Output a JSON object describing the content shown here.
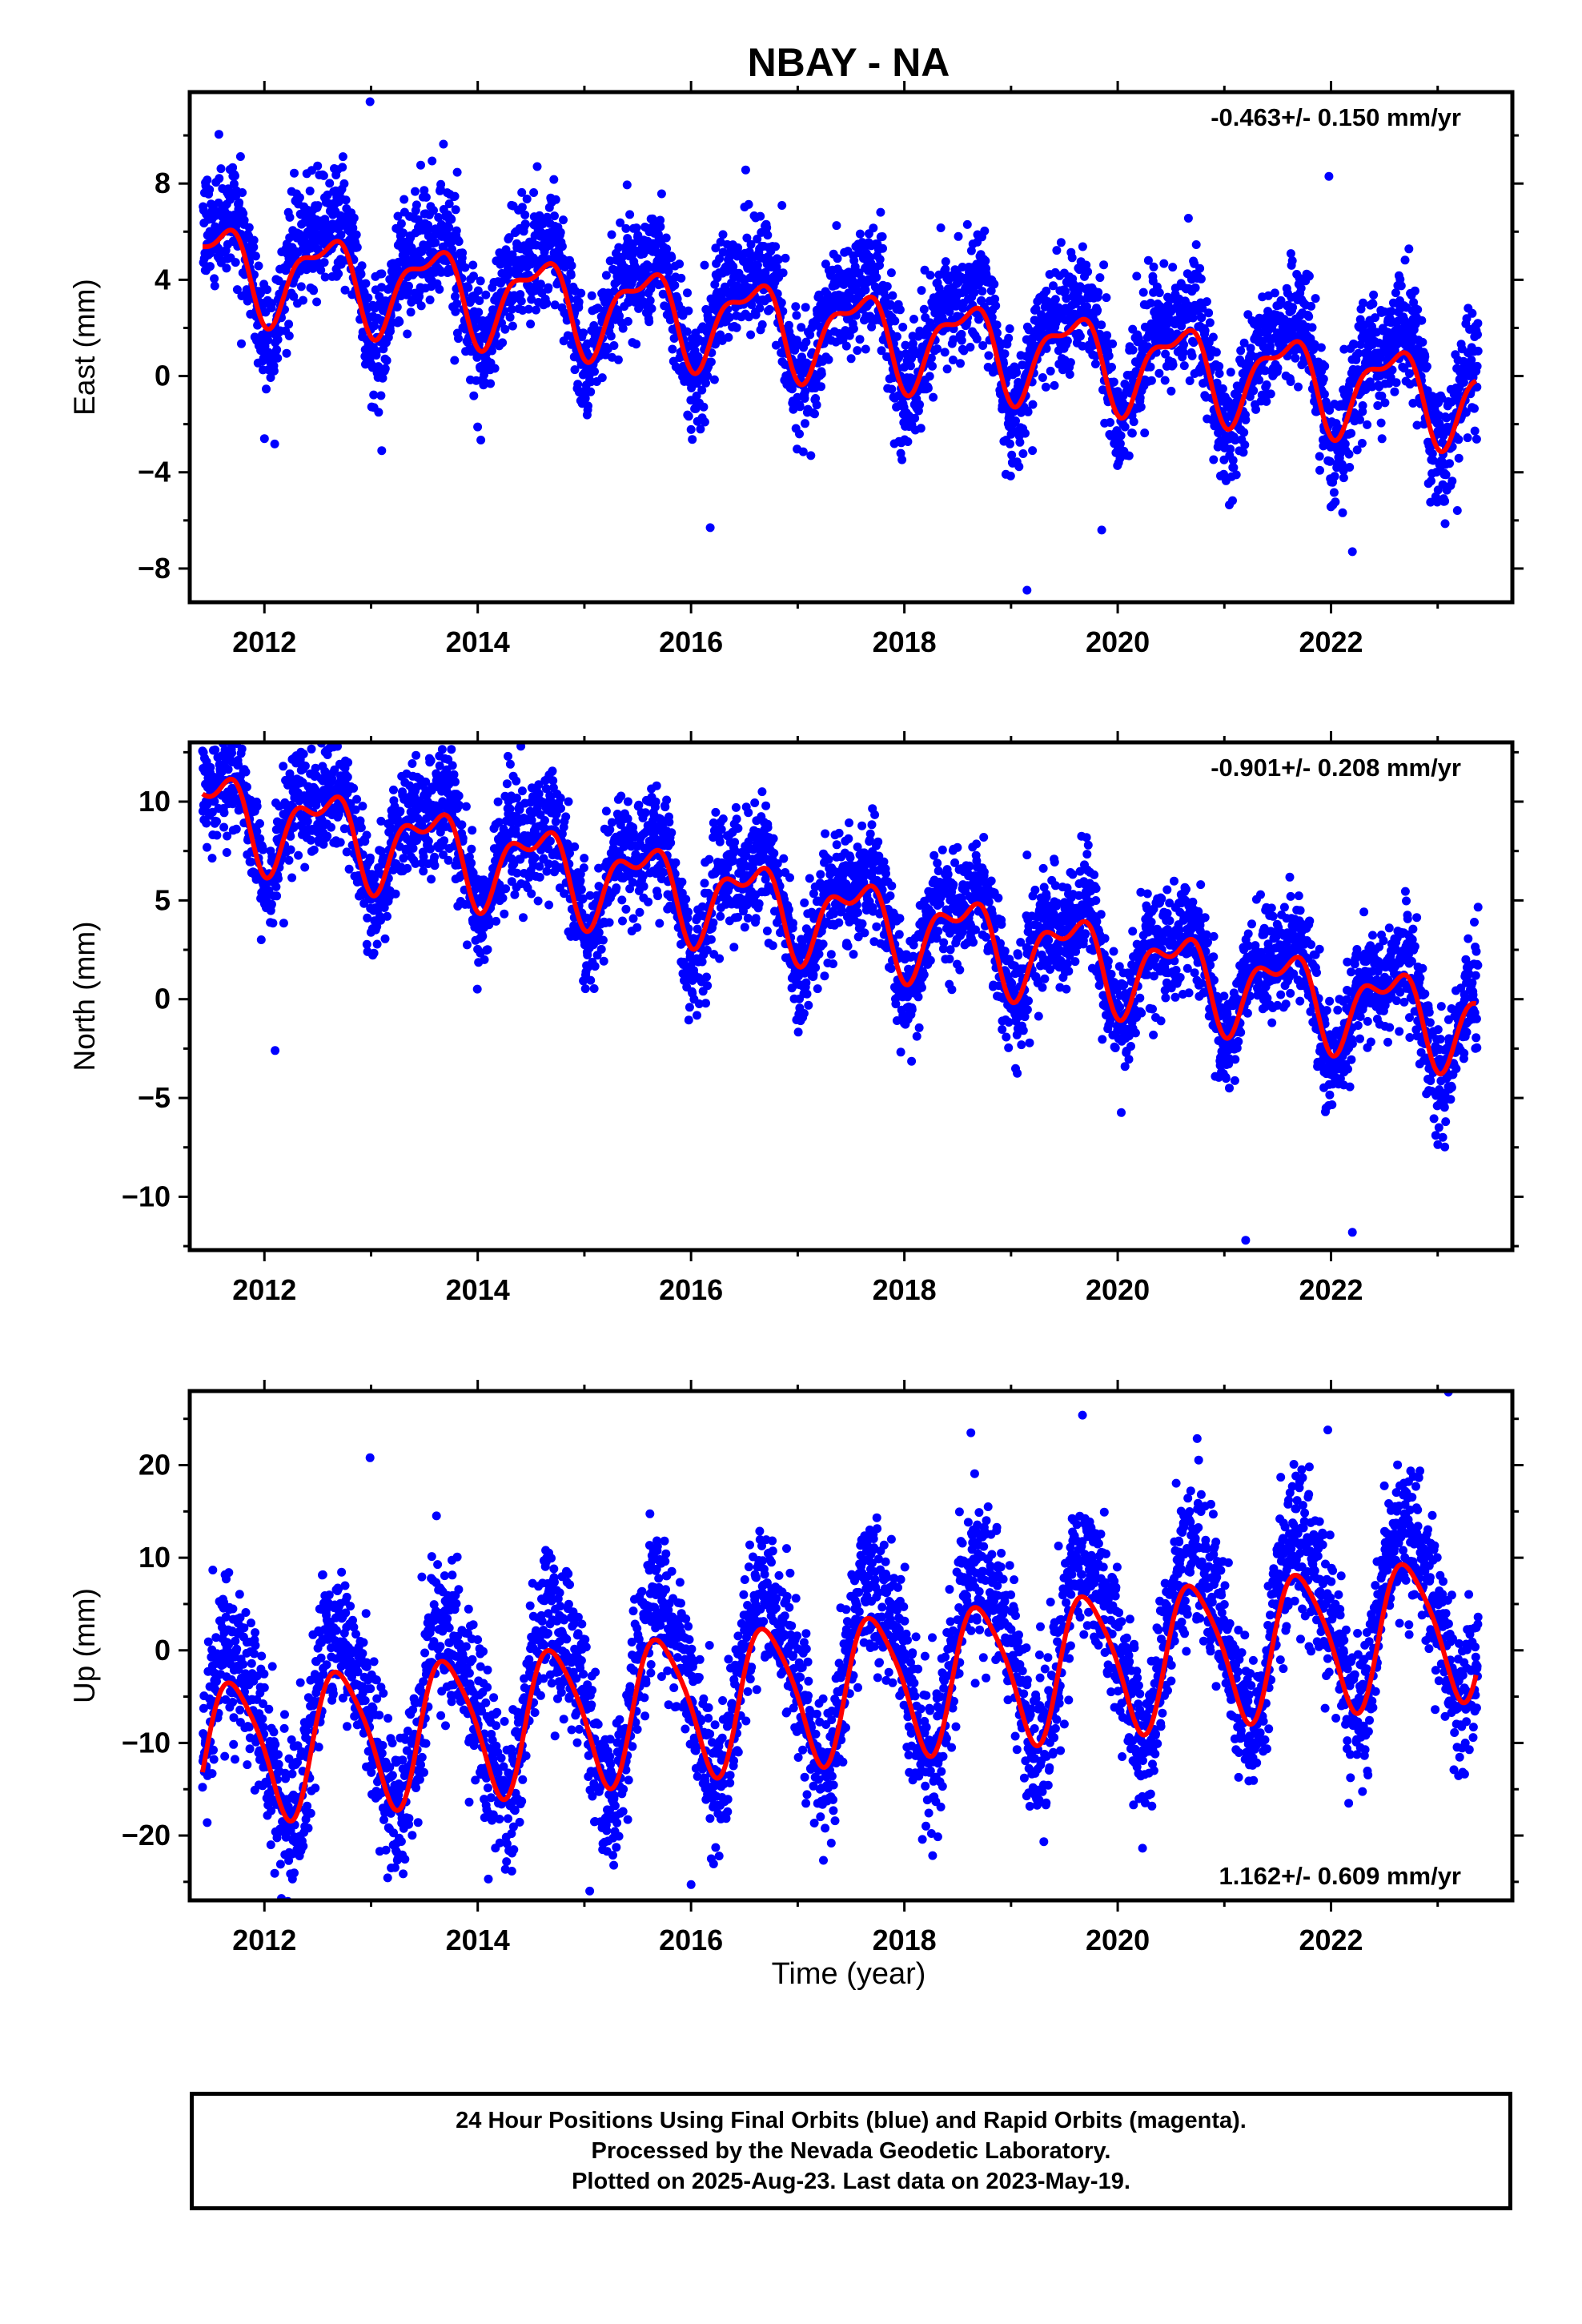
{
  "chart_data": {
    "type": "scatter",
    "title": "NBAY - NA",
    "xlabel": "Time (year)",
    "colors": {
      "final_orbits": "#0000ff",
      "model_fit": "#ff0000",
      "axes": "#000000"
    },
    "panels": [
      {
        "id": "east",
        "ylabel": "East (mm)",
        "rate_label": "-0.463+/- 0.150 mm/yr",
        "rate_position": "top-right",
        "xlim": [
          2011.3,
          2023.7
        ],
        "ylim": [
          -9.4,
          11.8
        ],
        "xticks": [
          2012,
          2014,
          2016,
          2018,
          2020,
          2022
        ],
        "xtick_labels": [
          "2012",
          "2014",
          "2016",
          "2018",
          "2020",
          "2022"
        ],
        "yticks": [
          -8,
          -4,
          0,
          4,
          8
        ],
        "ytick_labels": [
          "−8",
          "−4",
          "0",
          "4",
          "8"
        ],
        "model": {
          "start": 2011.42,
          "end": 2023.36,
          "v0": 2.0,
          "rate": -0.463,
          "annual_amp": 1.7,
          "annual_phase": 4.3,
          "semi_amp": 0.7,
          "semi_phase": 4.5
        },
        "scatter": {
          "noise_sd": 1.2,
          "amp_scale": 1.25,
          "offset": 0.5
        },
        "outliers": [
          [
            2012.99,
            11.4
          ],
          [
            2012.0,
            -2.6
          ],
          [
            2013.1,
            -3.1
          ],
          [
            2016.18,
            -6.3
          ],
          [
            2019.15,
            -8.9
          ],
          [
            2021.98,
            8.3
          ],
          [
            2022.2,
            -7.3
          ],
          [
            2019.85,
            -6.4
          ]
        ],
        "data_end": 2023.38
      },
      {
        "id": "north",
        "ylabel": "North (mm)",
        "rate_label": "-0.901+/- 0.208 mm/yr",
        "rate_position": "top-right",
        "xlim": [
          2011.3,
          2023.7
        ],
        "ylim": [
          -12.7,
          13.0
        ],
        "xticks": [
          2012,
          2014,
          2016,
          2018,
          2020,
          2022
        ],
        "xtick_labels": [
          "2012",
          "2014",
          "2016",
          "2018",
          "2020",
          "2022"
        ],
        "yticks": [
          -10,
          -5,
          0,
          5,
          10
        ],
        "ytick_labels": [
          "−10",
          "−5",
          "0",
          "5",
          "10"
        ],
        "model": {
          "start": 2011.42,
          "end": 2023.36,
          "v0": 4.5,
          "rate": -0.901,
          "annual_amp": 1.9,
          "annual_phase": 4.4,
          "semi_amp": 1.0,
          "semi_phase": 4.6
        },
        "scatter": {
          "noise_sd": 1.4,
          "amp_scale": 1.2,
          "offset": 0.3
        },
        "outliers": [
          [
            2012.61,
            12.7
          ],
          [
            2014.85,
            10.0
          ],
          [
            2019.15,
            7.3
          ],
          [
            2021.2,
            -12.2
          ],
          [
            2022.2,
            -11.8
          ],
          [
            2012.1,
            -2.6
          ]
        ],
        "data_end": 2023.38
      },
      {
        "id": "up",
        "ylabel": "Up (mm)",
        "rate_label": "1.162+/- 0.609 mm/yr",
        "rate_position": "bottom-right",
        "xlim": [
          2011.3,
          2023.7
        ],
        "ylim": [
          -27,
          28
        ],
        "xticks": [
          2012,
          2014,
          2016,
          2018,
          2020,
          2022
        ],
        "xtick_labels": [
          "2012",
          "2014",
          "2016",
          "2018",
          "2020",
          "2022"
        ],
        "yticks": [
          -20,
          -10,
          0,
          10,
          20
        ],
        "ytick_labels": [
          "−20",
          "−10",
          "0",
          "10",
          "20"
        ],
        "model": {
          "start": 2011.42,
          "end": 2023.36,
          "v0": -4.5,
          "rate": 1.162,
          "annual_amp": 7.5,
          "annual_phase": 3.35,
          "semi_amp": 1.3,
          "semi_phase": 1.0
        },
        "scatter": {
          "noise_sd": 4.0,
          "amp_scale": 1.25,
          "offset": 2.0
        },
        "outliers": [
          [
            2012.99,
            20.8
          ],
          [
            2019.67,
            25.4
          ],
          [
            2021.97,
            23.8
          ],
          [
            2023.1,
            27.9
          ],
          [
            2015.05,
            -26.0
          ],
          [
            2016.0,
            -25.3
          ],
          [
            2014.1,
            -24.7
          ],
          [
            2012.25,
            -17.6
          ]
        ],
        "data_end": 2023.38
      }
    ]
  },
  "footer": {
    "line1": "24 Hour Positions Using Final Orbits (blue) and Rapid Orbits (magenta).",
    "line2": "Processed by the Nevada Geodetic Laboratory.",
    "line3": "Plotted on 2025-Aug-23. Last data on 2023-May-19."
  }
}
